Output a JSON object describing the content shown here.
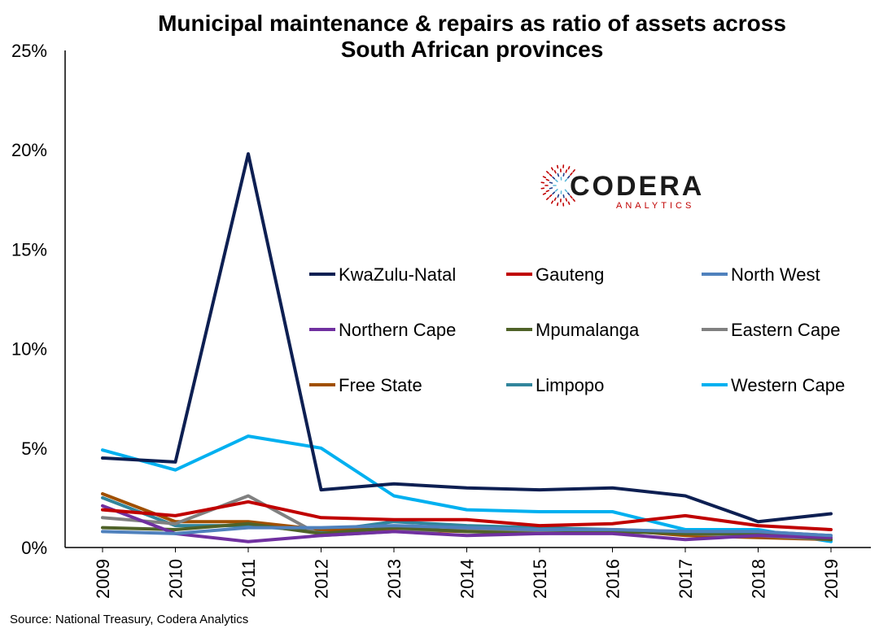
{
  "chart_data": {
    "type": "line",
    "title_lines": [
      "Municipal maintenance & repairs as ratio of assets across",
      "South African provinces"
    ],
    "xlabel": "",
    "ylabel": "",
    "categories": [
      "2009",
      "2010",
      "2011",
      "2012",
      "2013",
      "2014",
      "2015",
      "2016",
      "2017",
      "2018",
      "2019"
    ],
    "ylim": [
      0,
      25
    ],
    "y_ticks": [
      0,
      5,
      10,
      15,
      20,
      25
    ],
    "y_tick_labels": [
      "0%",
      "5%",
      "10%",
      "15%",
      "20%",
      "25%"
    ],
    "grid": false,
    "legend_position": "center-right",
    "series": [
      {
        "name": "KwaZulu-Natal",
        "color": "#0d1f52",
        "values": [
          4.5,
          4.3,
          19.8,
          2.9,
          3.2,
          3.0,
          2.9,
          3.0,
          2.6,
          1.3,
          1.7
        ]
      },
      {
        "name": "Gauteng",
        "color": "#c00000",
        "values": [
          1.9,
          1.6,
          2.3,
          1.5,
          1.4,
          1.4,
          1.1,
          1.2,
          1.6,
          1.1,
          0.9
        ]
      },
      {
        "name": "North West",
        "color": "#4f81bd",
        "values": [
          0.8,
          0.7,
          1.0,
          1.0,
          1.1,
          1.0,
          0.9,
          0.9,
          0.8,
          0.8,
          0.6
        ]
      },
      {
        "name": "Northern Cape",
        "color": "#7030a0",
        "values": [
          2.1,
          0.7,
          0.3,
          0.6,
          0.8,
          0.6,
          0.7,
          0.7,
          0.4,
          0.6,
          0.5
        ]
      },
      {
        "name": "Mpumalanga",
        "color": "#4f6228",
        "values": [
          1.0,
          0.9,
          1.2,
          0.7,
          1.0,
          0.8,
          0.7,
          0.8,
          0.7,
          0.7,
          0.4
        ]
      },
      {
        "name": "Eastern Cape",
        "color": "#808080",
        "values": [
          1.5,
          1.2,
          2.6,
          0.6,
          0.8,
          0.9,
          0.8,
          0.8,
          0.7,
          0.6,
          0.4
        ]
      },
      {
        "name": "Free State",
        "color": "#a04f00",
        "values": [
          2.7,
          1.3,
          1.3,
          0.9,
          0.9,
          0.8,
          0.8,
          0.9,
          0.6,
          0.5,
          0.4
        ]
      },
      {
        "name": "Limpopo",
        "color": "#31859c",
        "values": [
          2.5,
          1.1,
          1.1,
          0.8,
          1.3,
          1.1,
          1.0,
          0.9,
          0.8,
          0.8,
          0.6
        ]
      },
      {
        "name": "Western Cape",
        "color": "#00b0f0",
        "values": [
          4.9,
          3.9,
          5.6,
          5.0,
          2.6,
          1.9,
          1.8,
          1.8,
          0.9,
          0.9,
          0.3
        ]
      }
    ]
  },
  "logo": {
    "main": "CODERA",
    "sub": "ANALYTICS",
    "color_red": "#c00000",
    "color_blue": "#1f3c88",
    "color_light": "#5bb8d9"
  },
  "source_text": "Source: National Treasury, Codera Analytics"
}
